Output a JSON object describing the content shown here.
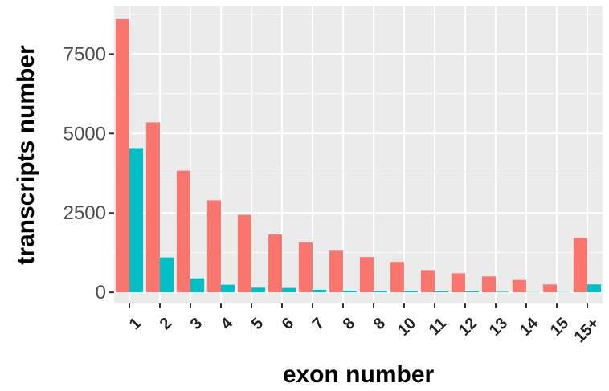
{
  "chart_data": {
    "type": "bar",
    "title": "",
    "xlabel": "exon number",
    "ylabel": "transcripts number",
    "categories": [
      "1",
      "2",
      "3",
      "4",
      "5",
      "6",
      "7",
      "8",
      "8",
      "10",
      "11",
      "12",
      "13",
      "14",
      "15",
      "15+"
    ],
    "series": [
      {
        "color": "#F8766D",
        "values": [
          8600,
          5350,
          3830,
          2900,
          2440,
          1820,
          1570,
          1310,
          1110,
          960,
          700,
          600,
          500,
          390,
          250,
          1720
        ]
      },
      {
        "color": "#00BFC4",
        "values": [
          4540,
          1100,
          440,
          240,
          150,
          140,
          80,
          50,
          40,
          40,
          30,
          30,
          20,
          10,
          10,
          250
        ]
      }
    ],
    "yticks": [
      0,
      2500,
      5000,
      7500
    ],
    "ytick_labels": [
      "0",
      "2500",
      "5000",
      "7500"
    ],
    "ylim": [
      -350,
      9000
    ],
    "grid": true,
    "legend": "none",
    "panel_background": "#EBEBEB"
  }
}
